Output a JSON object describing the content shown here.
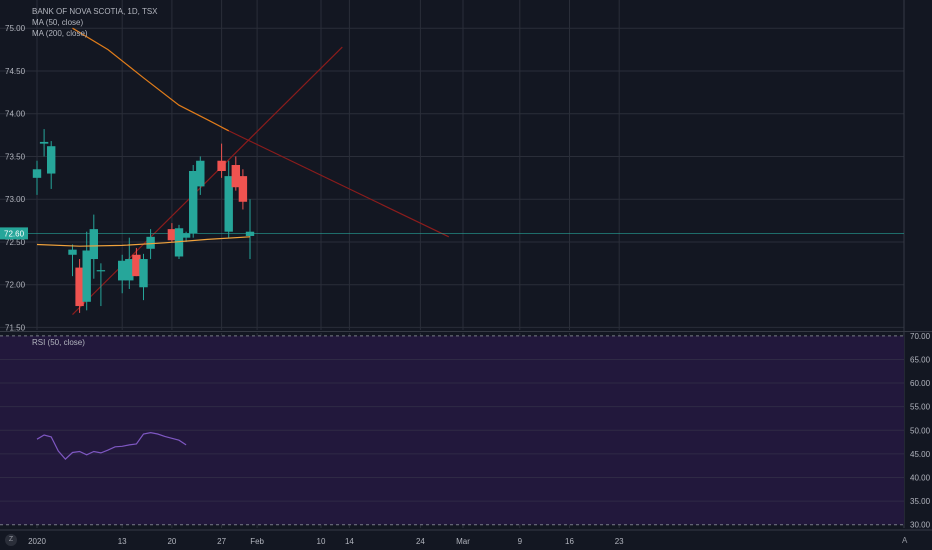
{
  "legend": {
    "title": "BANK OF NOVA SCOTIA, 1D, TSX",
    "ma50": "MA (50, close)",
    "ma200": "MA (200, close)",
    "rsi": "RSI (50, close)"
  },
  "buttons": {
    "zoom": "Z",
    "auto": "A"
  },
  "colors": {
    "background": "#131722",
    "grid": "#2a2e39",
    "up": "#26a69a",
    "down": "#ef5350",
    "ma50": "#e07c1a",
    "ma200": "#f0a23c",
    "rsi_line": "#7e57c2",
    "rsi_band": "#22183c",
    "trendline": "#8b1c1c",
    "price_line": "#26a69a",
    "axis_text": "#b2b5be"
  },
  "chart_data": [
    {
      "type": "candlestick",
      "title": "BANK OF NOVA SCOTIA, 1D, TSX",
      "ylim": [
        71.47,
        75.26
      ],
      "y_ticks": [
        71.5,
        72.0,
        72.5,
        73.0,
        73.5,
        74.0,
        74.5,
        75.0
      ],
      "y_tick_labels": [
        "71.50",
        "72.00",
        "72.50",
        "73.00",
        "73.50",
        "74.00",
        "74.50",
        "75.00"
      ],
      "last_price": 72.6,
      "last_price_label": "72.60",
      "x_ticks": [
        {
          "label": "2020",
          "day": 0
        },
        {
          "label": "13",
          "day": 12
        },
        {
          "label": "20",
          "day": 19
        },
        {
          "label": "27",
          "day": 26
        },
        {
          "label": "Feb",
          "day": 31
        },
        {
          "label": "10",
          "day": 40
        },
        {
          "label": "14",
          "day": 44
        },
        {
          "label": "24",
          "day": 54
        },
        {
          "label": "Mar",
          "day": 60
        },
        {
          "label": "9",
          "day": 68
        },
        {
          "label": "16",
          "day": 75
        },
        {
          "label": "23",
          "day": 82
        }
      ],
      "candles": [
        {
          "day": 0,
          "open": 73.25,
          "high": 73.45,
          "low": 73.05,
          "close": 73.35
        },
        {
          "day": 1,
          "open": 73.65,
          "high": 73.82,
          "low": 73.5,
          "close": 73.67
        },
        {
          "day": 2,
          "open": 73.3,
          "high": 73.68,
          "low": 73.12,
          "close": 73.62
        },
        {
          "day": 5,
          "open": 72.35,
          "high": 72.47,
          "low": 72.1,
          "close": 72.41
        },
        {
          "day": 6,
          "open": 72.2,
          "high": 72.3,
          "low": 71.67,
          "close": 71.75
        },
        {
          "day": 7,
          "open": 71.8,
          "high": 72.62,
          "low": 71.7,
          "close": 72.4
        },
        {
          "day": 8,
          "open": 72.3,
          "high": 72.82,
          "low": 72.07,
          "close": 72.65
        },
        {
          "day": 9,
          "open": 72.17,
          "high": 72.25,
          "low": 71.75,
          "close": 72.17
        },
        {
          "day": 12,
          "open": 72.05,
          "high": 72.35,
          "low": 71.9,
          "close": 72.28
        },
        {
          "day": 13,
          "open": 72.05,
          "high": 72.55,
          "low": 71.95,
          "close": 72.3
        },
        {
          "day": 14,
          "open": 72.35,
          "high": 72.43,
          "low": 72.1,
          "close": 72.1
        },
        {
          "day": 15,
          "open": 71.97,
          "high": 72.36,
          "low": 71.82,
          "close": 72.3
        },
        {
          "day": 16,
          "open": 72.42,
          "high": 72.65,
          "low": 72.3,
          "close": 72.56
        },
        {
          "day": 19,
          "open": 72.65,
          "high": 72.72,
          "low": 72.5,
          "close": 72.52
        },
        {
          "day": 20,
          "open": 72.33,
          "high": 72.7,
          "low": 72.3,
          "close": 72.66
        },
        {
          "day": 21,
          "open": 72.55,
          "high": 72.62,
          "low": 72.5,
          "close": 72.6
        },
        {
          "day": 22,
          "open": 72.6,
          "high": 73.4,
          "low": 72.55,
          "close": 73.33
        },
        {
          "day": 23,
          "open": 73.15,
          "high": 73.5,
          "low": 73.05,
          "close": 73.45
        },
        {
          "day": 26,
          "open": 73.45,
          "high": 73.65,
          "low": 73.25,
          "close": 73.33
        },
        {
          "day": 27,
          "open": 72.62,
          "high": 73.45,
          "low": 72.55,
          "close": 73.27
        },
        {
          "day": 28,
          "open": 73.4,
          "high": 73.5,
          "low": 73.1,
          "close": 73.14
        },
        {
          "day": 29,
          "open": 73.27,
          "high": 73.35,
          "low": 72.88,
          "close": 72.97
        },
        {
          "day": 30,
          "open": 72.57,
          "high": 73.0,
          "low": 72.3,
          "close": 72.62
        }
      ],
      "ma50": [
        {
          "day": 0,
          "value": 72.47
        },
        {
          "day": 6,
          "value": 72.45
        },
        {
          "day": 12,
          "value": 72.46
        },
        {
          "day": 18,
          "value": 72.49
        },
        {
          "day": 24,
          "value": 72.53
        },
        {
          "day": 30,
          "value": 72.56
        }
      ],
      "ma200": [
        {
          "day": 5,
          "value": 75.0
        },
        {
          "day": 10,
          "value": 74.75
        },
        {
          "day": 15,
          "value": 74.42
        },
        {
          "day": 20,
          "value": 74.1
        },
        {
          "day": 24,
          "value": 73.93
        },
        {
          "day": 27,
          "value": 73.8
        }
      ],
      "trendlines": [
        {
          "from": {
            "day": 5,
            "value": 71.65
          },
          "to": {
            "day": 43,
            "value": 74.78
          }
        },
        {
          "from": {
            "day": 26,
            "value": 73.84
          },
          "to": {
            "day": 58,
            "value": 72.56
          }
        }
      ]
    },
    {
      "type": "line",
      "name": "RSI (50, close)",
      "ylim": [
        29.3,
        70.6
      ],
      "y_ticks": [
        30,
        35,
        40,
        45,
        50,
        55,
        60,
        65,
        70
      ],
      "y_tick_labels": [
        "30.00",
        "35.00",
        "40.00",
        "45.00",
        "50.00",
        "55.00",
        "60.00",
        "65.00",
        "70.00"
      ],
      "band": [
        30,
        70
      ],
      "points": [
        {
          "day": 0,
          "value": 48.1
        },
        {
          "day": 1,
          "value": 49.0
        },
        {
          "day": 2,
          "value": 48.6
        },
        {
          "day": 3,
          "value": 45.6
        },
        {
          "day": 4,
          "value": 43.9
        },
        {
          "day": 5,
          "value": 45.3
        },
        {
          "day": 6,
          "value": 45.5
        },
        {
          "day": 7,
          "value": 44.8
        },
        {
          "day": 8,
          "value": 45.5
        },
        {
          "day": 9,
          "value": 45.2
        },
        {
          "day": 10,
          "value": 45.8
        },
        {
          "day": 11,
          "value": 46.5
        },
        {
          "day": 12,
          "value": 46.6
        },
        {
          "day": 13,
          "value": 46.9
        },
        {
          "day": 14,
          "value": 47.1
        },
        {
          "day": 15,
          "value": 49.2
        },
        {
          "day": 16,
          "value": 49.5
        },
        {
          "day": 17,
          "value": 49.2
        },
        {
          "day": 18,
          "value": 48.7
        },
        {
          "day": 19,
          "value": 48.3
        },
        {
          "day": 20,
          "value": 47.9
        },
        {
          "day": 21,
          "value": 46.9
        }
      ]
    }
  ]
}
